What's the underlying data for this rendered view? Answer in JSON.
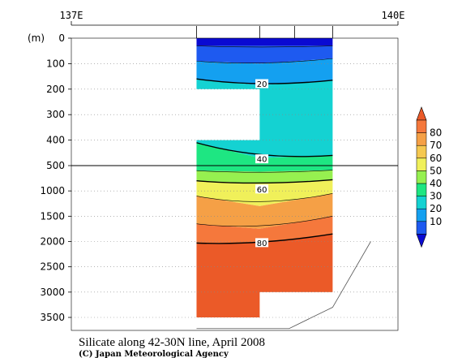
{
  "chart_data": {
    "type": "heatmap",
    "title": "Silicate along 42-30N line, April 2008",
    "credit": "(C) Japan Meteorological Agency",
    "ylabel": "(m)",
    "x_tick_labels": [
      {
        "lon": 137,
        "label": "137E"
      },
      {
        "lon": 140,
        "label": "140E"
      }
    ],
    "xlim": [
      137,
      140
    ],
    "upper_y_ticks": [
      0,
      100,
      200,
      300,
      400,
      500
    ],
    "lower_y_ticks": [
      500,
      1000,
      1500,
      2000,
      2500,
      3000,
      3500
    ],
    "upper_ylim": [
      0,
      500
    ],
    "lower_ylim": [
      500,
      3750
    ],
    "stations_lon": [
      138.15,
      138.73,
      139.05,
      139.4
    ],
    "section_lon_range": [
      138.15,
      139.4
    ],
    "colorbar": {
      "levels": [
        10,
        20,
        30,
        40,
        50,
        60,
        70,
        80
      ],
      "colors": [
        "#0a0ad2",
        "#1e5af0",
        "#14a0f0",
        "#14d2d2",
        "#1ee682",
        "#96f050",
        "#f0f05a",
        "#f5c850",
        "#f5a046",
        "#f5783c",
        "#eb5a28"
      ]
    },
    "contour_labels": [
      {
        "value": "20",
        "lon": 138.75,
        "depth": 180
      },
      {
        "value": "40",
        "lon": 138.75,
        "depth": 475
      },
      {
        "value": "60",
        "lon": 138.75,
        "depth": 970
      },
      {
        "value": "80",
        "lon": 138.75,
        "depth": 2030
      }
    ],
    "bottom_topography_m": [
      {
        "lon": 138.15,
        "depth": 3720
      },
      {
        "lon": 139.0,
        "depth": 3720
      },
      {
        "lon": 139.4,
        "depth": 3300
      },
      {
        "lon": 139.75,
        "depth": 2000
      }
    ]
  }
}
